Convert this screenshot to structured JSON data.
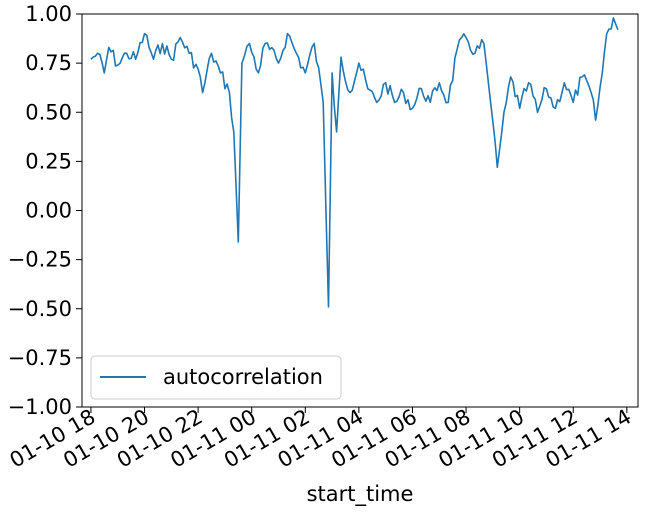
{
  "chart_data": {
    "type": "line",
    "title": "",
    "xlabel": "start_time",
    "ylabel": "",
    "ylim": [
      -1.0,
      1.0
    ],
    "xlim": [
      "2024-01-10T17:40",
      "2024-01-11T14:25"
    ],
    "grid": false,
    "legend": {
      "placement": "lower-left",
      "entries": [
        "autocorrelation"
      ]
    },
    "yticks": [
      {
        "value": 1.0,
        "label": "1.00"
      },
      {
        "value": 0.75,
        "label": "0.75"
      },
      {
        "value": 0.5,
        "label": "0.50"
      },
      {
        "value": 0.25,
        "label": "0.25"
      },
      {
        "value": 0.0,
        "label": "0.00"
      },
      {
        "value": -0.25,
        "label": "−0.25"
      },
      {
        "value": -0.5,
        "label": "−0.50"
      },
      {
        "value": -0.75,
        "label": "−0.75"
      },
      {
        "value": -1.0,
        "label": "−1.00"
      }
    ],
    "xticks": [
      {
        "value": "2024-01-10T18:00",
        "label": "01-10 18"
      },
      {
        "value": "2024-01-10T20:00",
        "label": "01-10 20"
      },
      {
        "value": "2024-01-10T22:00",
        "label": "01-10 22"
      },
      {
        "value": "2024-01-11T00:00",
        "label": "01-11 00"
      },
      {
        "value": "2024-01-11T02:00",
        "label": "01-11 02"
      },
      {
        "value": "2024-01-11T04:00",
        "label": "01-11 04"
      },
      {
        "value": "2024-01-11T06:00",
        "label": "01-11 06"
      },
      {
        "value": "2024-01-11T08:00",
        "label": "01-11 08"
      },
      {
        "value": "2024-01-11T10:00",
        "label": "01-11 10"
      },
      {
        "value": "2024-01-11T12:00",
        "label": "01-11 12"
      },
      {
        "value": "2024-01-11T14:00",
        "label": "01-11 14"
      }
    ],
    "series": [
      {
        "name": "autocorrelation",
        "color": "#1f77b4",
        "points": [
          {
            "x": "2024-01-10T18:00",
            "y": 0.77
          },
          {
            "x": "2024-01-10T18:15",
            "y": 0.8
          },
          {
            "x": "2024-01-10T18:30",
            "y": 0.7
          },
          {
            "x": "2024-01-10T18:40",
            "y": 0.83
          },
          {
            "x": "2024-01-10T19:00",
            "y": 0.74
          },
          {
            "x": "2024-01-10T19:20",
            "y": 0.8
          },
          {
            "x": "2024-01-10T19:40",
            "y": 0.77
          },
          {
            "x": "2024-01-10T20:00",
            "y": 0.9
          },
          {
            "x": "2024-01-10T20:20",
            "y": 0.77
          },
          {
            "x": "2024-01-10T20:40",
            "y": 0.85
          },
          {
            "x": "2024-01-10T21:00",
            "y": 0.77
          },
          {
            "x": "2024-01-10T21:20",
            "y": 0.88
          },
          {
            "x": "2024-01-10T21:40",
            "y": 0.8
          },
          {
            "x": "2024-01-10T22:00",
            "y": 0.72
          },
          {
            "x": "2024-01-10T22:10",
            "y": 0.6
          },
          {
            "x": "2024-01-10T22:30",
            "y": 0.8
          },
          {
            "x": "2024-01-10T22:50",
            "y": 0.7
          },
          {
            "x": "2024-01-10T23:10",
            "y": 0.6
          },
          {
            "x": "2024-01-10T23:20",
            "y": 0.4
          },
          {
            "x": "2024-01-10T23:30",
            "y": -0.16
          },
          {
            "x": "2024-01-10T23:38",
            "y": 0.75
          },
          {
            "x": "2024-01-10T23:55",
            "y": 0.85
          },
          {
            "x": "2024-01-11T00:15",
            "y": 0.7
          },
          {
            "x": "2024-01-11T00:30",
            "y": 0.85
          },
          {
            "x": "2024-01-11T01:00",
            "y": 0.75
          },
          {
            "x": "2024-01-11T01:20",
            "y": 0.9
          },
          {
            "x": "2024-01-11T01:40",
            "y": 0.8
          },
          {
            "x": "2024-01-11T02:00",
            "y": 0.7
          },
          {
            "x": "2024-01-11T02:20",
            "y": 0.85
          },
          {
            "x": "2024-01-11T02:40",
            "y": 0.55
          },
          {
            "x": "2024-01-11T02:52",
            "y": -0.49
          },
          {
            "x": "2024-01-11T03:00",
            "y": 0.7
          },
          {
            "x": "2024-01-11T03:10",
            "y": 0.4
          },
          {
            "x": "2024-01-11T03:20",
            "y": 0.78
          },
          {
            "x": "2024-01-11T03:40",
            "y": 0.6
          },
          {
            "x": "2024-01-11T04:00",
            "y": 0.75
          },
          {
            "x": "2024-01-11T04:20",
            "y": 0.62
          },
          {
            "x": "2024-01-11T04:40",
            "y": 0.55
          },
          {
            "x": "2024-01-11T05:00",
            "y": 0.65
          },
          {
            "x": "2024-01-11T05:20",
            "y": 0.55
          },
          {
            "x": "2024-01-11T05:40",
            "y": 0.6
          },
          {
            "x": "2024-01-11T06:00",
            "y": 0.52
          },
          {
            "x": "2024-01-11T06:20",
            "y": 0.62
          },
          {
            "x": "2024-01-11T06:40",
            "y": 0.55
          },
          {
            "x": "2024-01-11T07:00",
            "y": 0.65
          },
          {
            "x": "2024-01-11T07:20",
            "y": 0.55
          },
          {
            "x": "2024-01-11T07:40",
            "y": 0.82
          },
          {
            "x": "2024-01-11T08:00",
            "y": 0.88
          },
          {
            "x": "2024-01-11T08:20",
            "y": 0.8
          },
          {
            "x": "2024-01-11T08:40",
            "y": 0.85
          },
          {
            "x": "2024-01-11T09:00",
            "y": 0.45
          },
          {
            "x": "2024-01-11T09:10",
            "y": 0.22
          },
          {
            "x": "2024-01-11T09:20",
            "y": 0.4
          },
          {
            "x": "2024-01-11T09:40",
            "y": 0.68
          },
          {
            "x": "2024-01-11T10:00",
            "y": 0.52
          },
          {
            "x": "2024-01-11T10:20",
            "y": 0.65
          },
          {
            "x": "2024-01-11T10:40",
            "y": 0.5
          },
          {
            "x": "2024-01-11T11:00",
            "y": 0.62
          },
          {
            "x": "2024-01-11T11:20",
            "y": 0.52
          },
          {
            "x": "2024-01-11T11:40",
            "y": 0.65
          },
          {
            "x": "2024-01-11T12:00",
            "y": 0.55
          },
          {
            "x": "2024-01-11T12:20",
            "y": 0.68
          },
          {
            "x": "2024-01-11T12:40",
            "y": 0.6
          },
          {
            "x": "2024-01-11T12:50",
            "y": 0.46
          },
          {
            "x": "2024-01-11T13:05",
            "y": 0.7
          },
          {
            "x": "2024-01-11T13:15",
            "y": 0.9
          },
          {
            "x": "2024-01-11T13:30",
            "y": 0.98
          },
          {
            "x": "2024-01-11T13:40",
            "y": 0.92
          }
        ]
      }
    ]
  }
}
